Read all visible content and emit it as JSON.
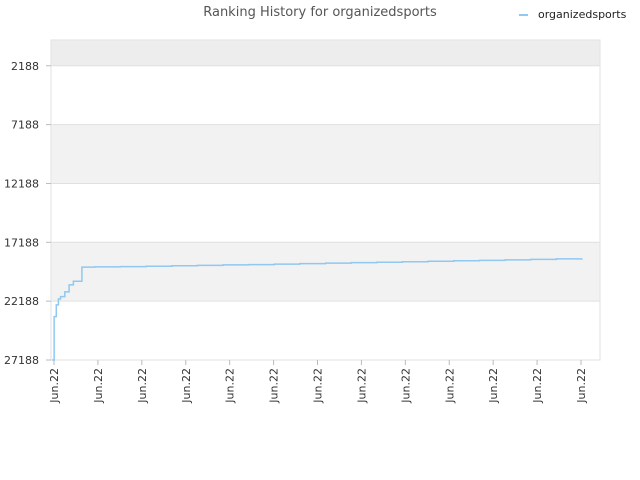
{
  "chart_data": {
    "type": "line",
    "title": "Ranking History for organizedsports",
    "xlabel": "",
    "ylabel": "",
    "y_inverted": true,
    "ylim": [
      27188,
      0
    ],
    "y_ticks": [
      2188,
      7188,
      12188,
      17188,
      22188,
      27188
    ],
    "y_tick_labels": [
      "2188",
      "7188",
      "12188",
      "17188",
      "22188",
      "27188"
    ],
    "x_tick_labels": [
      "Jun.22",
      "Jun.22",
      "Jun.22",
      "Jun.22",
      "Jun.22",
      "Jun.22",
      "Jun.22",
      "Jun.22",
      "Jun.22",
      "Jun.22",
      "Jun.22",
      "Jun.22",
      "Jun.22"
    ],
    "legend_position": "top-right",
    "grid": true,
    "band_colors": [
      "#ededed",
      "#ffffff",
      "#f2f2f2"
    ],
    "series": [
      {
        "name": "organizedsports",
        "color": "#90c8f0",
        "x": [
          0.0,
          0.05,
          0.1,
          0.15,
          0.2,
          0.3,
          0.4,
          0.5,
          0.7,
          1.0,
          1.6,
          2.2,
          2.8,
          3.4,
          4.0,
          4.6,
          5.2,
          5.8,
          6.4,
          7.0,
          7.6,
          8.2,
          8.8,
          9.4,
          10.0,
          10.6,
          11.2,
          11.8,
          12.4
        ],
        "values": [
          27188,
          23500,
          22500,
          22000,
          21800,
          21400,
          20800,
          20500,
          19300,
          19280,
          19250,
          19220,
          19180,
          19150,
          19110,
          19080,
          19040,
          19000,
          18960,
          18920,
          18880,
          18840,
          18800,
          18760,
          18720,
          18680,
          18640,
          18600,
          18560
        ]
      }
    ]
  }
}
